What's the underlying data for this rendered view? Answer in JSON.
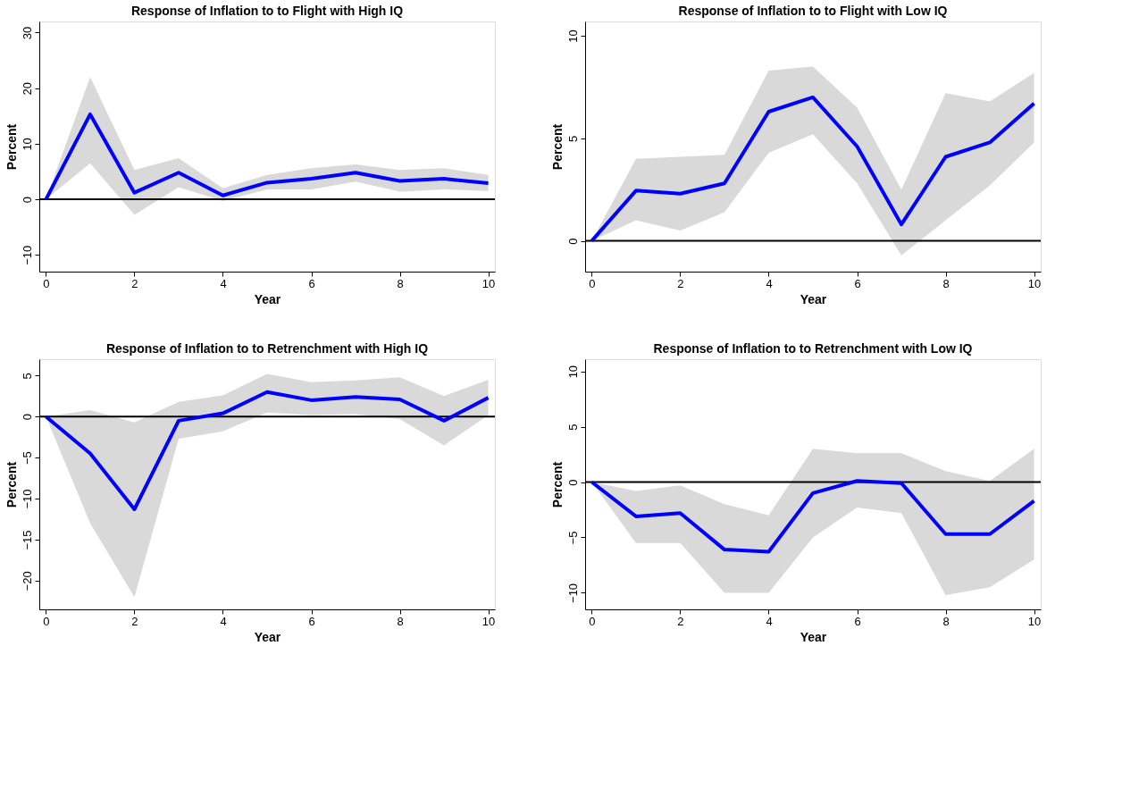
{
  "chart_data": [
    {
      "type": "line",
      "title": "Response of Inflation to to Flight with High IQ",
      "xlabel": "Year",
      "ylabel": "Percent",
      "x": [
        0,
        1,
        2,
        3,
        4,
        5,
        6,
        7,
        8,
        9,
        10
      ],
      "xlim": [
        -0.15,
        10.15
      ],
      "xticks": [
        0,
        2,
        4,
        6,
        8,
        10
      ],
      "ylim": [
        -13,
        32
      ],
      "yticks": [
        -10,
        0,
        10,
        20,
        30
      ],
      "series": [
        {
          "color": "#0000ff",
          "values": [
            0,
            15.3,
            1.2,
            4.8,
            0.7,
            3.0,
            3.7,
            4.8,
            3.3,
            3.7,
            2.9
          ],
          "lower": [
            0,
            6.5,
            -2.8,
            2.2,
            -0.3,
            1.8,
            1.8,
            3.2,
            1.4,
            1.8,
            1.5
          ],
          "upper": [
            0,
            22,
            5.3,
            7.4,
            2.0,
            4.4,
            5.6,
            6.3,
            5.3,
            5.6,
            4.4
          ]
        }
      ],
      "ref_lines": [
        {
          "axis": "y",
          "value": 0,
          "color": "#000000"
        }
      ]
    },
    {
      "type": "line",
      "title": "Response of Inflation to to Flight with Low IQ",
      "xlabel": "Year",
      "ylabel": "Percent",
      "x": [
        0,
        1,
        2,
        3,
        4,
        5,
        6,
        7,
        8,
        9,
        10
      ],
      "xlim": [
        -0.15,
        10.15
      ],
      "xticks": [
        0,
        2,
        4,
        6,
        8,
        10
      ],
      "ylim": [
        -1.5,
        10.7
      ],
      "yticks": [
        0,
        5,
        10
      ],
      "series": [
        {
          "color": "#0000ff",
          "values": [
            0,
            2.45,
            2.3,
            2.8,
            6.3,
            7.0,
            4.6,
            0.8,
            4.1,
            4.8,
            6.7
          ],
          "lower": [
            0,
            1.0,
            0.5,
            1.4,
            4.3,
            5.2,
            2.8,
            -0.7,
            1.0,
            2.7,
            4.8
          ],
          "upper": [
            0,
            4.0,
            4.1,
            4.2,
            8.3,
            8.5,
            6.5,
            2.5,
            7.2,
            6.8,
            8.2
          ]
        }
      ],
      "ref_lines": [
        {
          "axis": "y",
          "value": 0,
          "color": "#000000"
        }
      ]
    },
    {
      "type": "line",
      "title": "Response of Inflation to to Retrenchment with High IQ",
      "xlabel": "Year",
      "ylabel": "Percent",
      "x": [
        0,
        1,
        2,
        3,
        4,
        5,
        6,
        7,
        8,
        9,
        10
      ],
      "xlim": [
        -0.15,
        10.15
      ],
      "xticks": [
        0,
        2,
        4,
        6,
        8,
        10
      ],
      "ylim": [
        -23.5,
        7
      ],
      "yticks": [
        -20,
        -15,
        -10,
        -5,
        0,
        5
      ],
      "series": [
        {
          "color": "#0000ff",
          "values": [
            0,
            -4.5,
            -11.3,
            -0.5,
            0.4,
            3.0,
            2.0,
            2.4,
            2.1,
            -0.5,
            2.3
          ],
          "lower": [
            0,
            -13,
            -22,
            -2.7,
            -1.8,
            0.5,
            0.2,
            0.3,
            -0.3,
            -3.5,
            0.2
          ],
          "upper": [
            0,
            0.8,
            -0.7,
            1.8,
            2.6,
            5.2,
            4.2,
            4.4,
            4.8,
            2.5,
            4.5
          ]
        }
      ],
      "ref_lines": [
        {
          "axis": "y",
          "value": 0,
          "color": "#000000"
        }
      ]
    },
    {
      "type": "line",
      "title": "Response of Inflation to to Retrenchment with Low IQ",
      "xlabel": "Year",
      "ylabel": "Percent",
      "x": [
        0,
        1,
        2,
        3,
        4,
        5,
        6,
        7,
        8,
        9,
        10
      ],
      "xlim": [
        -0.15,
        10.15
      ],
      "xticks": [
        0,
        2,
        4,
        6,
        8,
        10
      ],
      "ylim": [
        -11.5,
        11.1
      ],
      "yticks": [
        -10,
        -5,
        0,
        5,
        10
      ],
      "series": [
        {
          "color": "#0000ff",
          "values": [
            0,
            -3.1,
            -2.8,
            -6.1,
            -6.3,
            -1.0,
            0.1,
            -0.1,
            -4.7,
            -4.7,
            -1.7
          ],
          "lower": [
            0,
            -5.5,
            -5.5,
            -10,
            -10,
            -5,
            -2.3,
            -2.8,
            -10.2,
            -9.5,
            -7
          ],
          "upper": [
            0,
            -0.8,
            -0.3,
            -2.0,
            -3.0,
            3.0,
            2.6,
            2.6,
            1.0,
            0.1,
            3.0
          ]
        }
      ],
      "ref_lines": [
        {
          "axis": "y",
          "value": 0,
          "color": "#000000"
        }
      ]
    }
  ]
}
